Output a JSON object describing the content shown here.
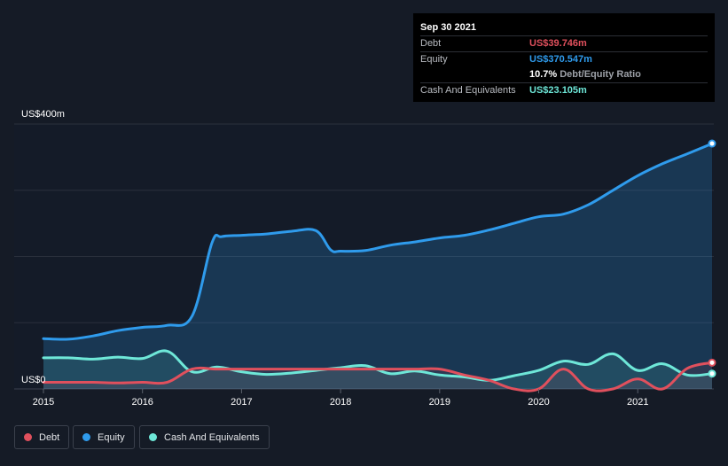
{
  "tooltip": {
    "date": "Sep 30 2021",
    "rows": [
      {
        "label": "Debt",
        "value": "US$39.746m",
        "color": "#e0505d"
      },
      {
        "label": "Equity",
        "value": "US$370.547m",
        "color": "#2f9bec"
      },
      {
        "label": "Cash And Equivalents",
        "value": "US$23.105m",
        "color": "#6ee7d8"
      }
    ],
    "ratio_value": "10.7%",
    "ratio_label": "Debt/Equity Ratio"
  },
  "legend": [
    {
      "label": "Debt",
      "color": "#e0505d"
    },
    {
      "label": "Equity",
      "color": "#2f9bec"
    },
    {
      "label": "Cash And Equivalents",
      "color": "#6ee7d8"
    }
  ],
  "chart_data": {
    "type": "area",
    "y_top_label": "US$400m",
    "y_zero_label": "US$0",
    "ylim": [
      0,
      400
    ],
    "xlim": [
      2015,
      2021.75
    ],
    "x_ticks": [
      {
        "value": 2015,
        "label": "2015"
      },
      {
        "value": 2016,
        "label": "2016"
      },
      {
        "value": 2017,
        "label": "2017"
      },
      {
        "value": 2018,
        "label": "2018"
      },
      {
        "value": 2019,
        "label": "2019"
      },
      {
        "value": 2020,
        "label": "2020"
      },
      {
        "value": 2021,
        "label": "2021"
      }
    ],
    "grid": true,
    "series": [
      {
        "name": "Equity",
        "color": "#2f9bec",
        "points": [
          [
            2015.0,
            76
          ],
          [
            2015.25,
            75
          ],
          [
            2015.5,
            80
          ],
          [
            2015.75,
            88
          ],
          [
            2016.0,
            93
          ],
          [
            2016.25,
            96
          ],
          [
            2016.5,
            110
          ],
          [
            2016.7,
            220
          ],
          [
            2016.8,
            230
          ],
          [
            2017.0,
            232
          ],
          [
            2017.25,
            234
          ],
          [
            2017.5,
            238
          ],
          [
            2017.75,
            239
          ],
          [
            2017.9,
            210
          ],
          [
            2018.0,
            208
          ],
          [
            2018.25,
            209
          ],
          [
            2018.5,
            217
          ],
          [
            2018.75,
            222
          ],
          [
            2019.0,
            228
          ],
          [
            2019.25,
            232
          ],
          [
            2019.5,
            240
          ],
          [
            2019.75,
            250
          ],
          [
            2020.0,
            260
          ],
          [
            2020.25,
            264
          ],
          [
            2020.5,
            278
          ],
          [
            2020.75,
            300
          ],
          [
            2021.0,
            322
          ],
          [
            2021.25,
            340
          ],
          [
            2021.5,
            355
          ],
          [
            2021.75,
            370.5
          ]
        ]
      },
      {
        "name": "Cash And Equivalents",
        "color": "#6ee7d8",
        "points": [
          [
            2015.0,
            47
          ],
          [
            2015.25,
            47
          ],
          [
            2015.5,
            45
          ],
          [
            2015.75,
            48
          ],
          [
            2016.0,
            46
          ],
          [
            2016.25,
            57
          ],
          [
            2016.5,
            26
          ],
          [
            2016.75,
            33
          ],
          [
            2017.0,
            26
          ],
          [
            2017.25,
            22
          ],
          [
            2017.5,
            24
          ],
          [
            2017.75,
            28
          ],
          [
            2018.0,
            32
          ],
          [
            2018.25,
            35
          ],
          [
            2018.5,
            23
          ],
          [
            2018.75,
            27
          ],
          [
            2019.0,
            21
          ],
          [
            2019.25,
            18
          ],
          [
            2019.5,
            13
          ],
          [
            2019.75,
            20
          ],
          [
            2020.0,
            28
          ],
          [
            2020.25,
            42
          ],
          [
            2020.5,
            37
          ],
          [
            2020.75,
            53
          ],
          [
            2021.0,
            28
          ],
          [
            2021.25,
            38
          ],
          [
            2021.5,
            21
          ],
          [
            2021.75,
            23.1
          ]
        ]
      },
      {
        "name": "Debt",
        "color": "#e0505d",
        "points": [
          [
            2015.0,
            10
          ],
          [
            2015.25,
            10
          ],
          [
            2015.5,
            10
          ],
          [
            2015.75,
            9
          ],
          [
            2016.0,
            10
          ],
          [
            2016.25,
            10
          ],
          [
            2016.5,
            30
          ],
          [
            2016.75,
            30
          ],
          [
            2017.0,
            30
          ],
          [
            2017.25,
            30
          ],
          [
            2017.5,
            30
          ],
          [
            2017.75,
            30
          ],
          [
            2018.0,
            30
          ],
          [
            2018.25,
            30
          ],
          [
            2018.5,
            30
          ],
          [
            2018.75,
            30
          ],
          [
            2019.0,
            30
          ],
          [
            2019.25,
            21
          ],
          [
            2019.5,
            13
          ],
          [
            2019.75,
            0
          ],
          [
            2020.0,
            0
          ],
          [
            2020.25,
            30
          ],
          [
            2020.5,
            0
          ],
          [
            2020.75,
            0
          ],
          [
            2021.0,
            15
          ],
          [
            2021.25,
            0
          ],
          [
            2021.5,
            31
          ],
          [
            2021.75,
            39.7
          ]
        ]
      }
    ]
  }
}
